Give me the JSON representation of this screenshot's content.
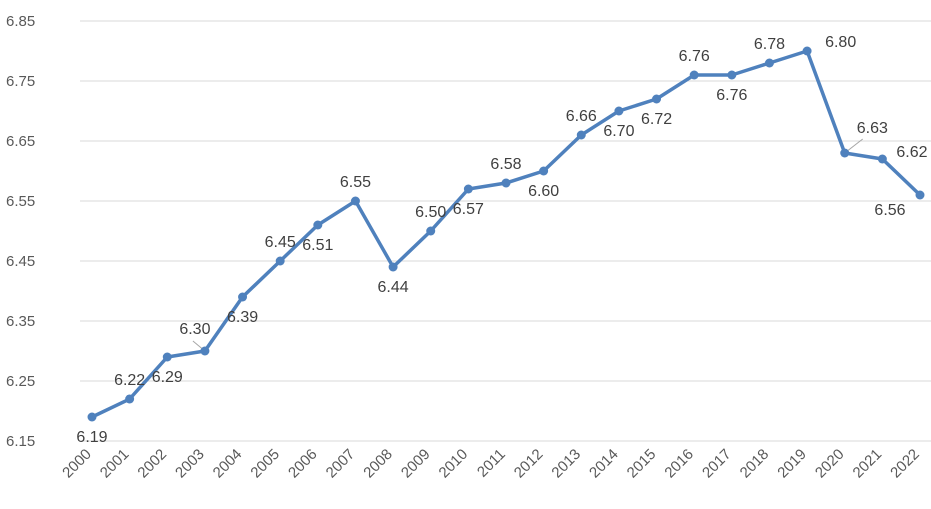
{
  "chart_data": {
    "type": "line",
    "title": "",
    "xlabel": "",
    "ylabel": "",
    "ylim": [
      6.15,
      6.85
    ],
    "y_ticks": [
      "6.15",
      "6.25",
      "6.35",
      "6.45",
      "6.55",
      "6.65",
      "6.75",
      "6.85"
    ],
    "grid": "horizontal",
    "legend": "none",
    "line_color": "#4F81BD",
    "x": [
      "2000",
      "2001",
      "2002",
      "2003",
      "2004",
      "2005",
      "2006",
      "2007",
      "2008",
      "2009",
      "2010",
      "2011",
      "2012",
      "2013",
      "2014",
      "2015",
      "2016",
      "2017",
      "2018",
      "2019",
      "2020",
      "2021",
      "2022"
    ],
    "series": [
      {
        "values": [
          6.19,
          6.22,
          6.29,
          6.3,
          6.39,
          6.45,
          6.51,
          6.55,
          6.44,
          6.5,
          6.57,
          6.58,
          6.6,
          6.66,
          6.7,
          6.72,
          6.76,
          6.76,
          6.78,
          6.8,
          6.63,
          6.62,
          6.56
        ],
        "labels": [
          "6.19",
          "6.22",
          "6.29",
          "6.30",
          "6.39",
          "6.45",
          "6.51",
          "6.55",
          "6.44",
          "6.50",
          "6.57",
          "6.58",
          "6.60",
          "6.66",
          "6.70",
          "6.72",
          "6.76",
          "6.76",
          "6.78",
          "6.80",
          "6.63",
          "6.62",
          "6.56"
        ]
      }
    ]
  }
}
